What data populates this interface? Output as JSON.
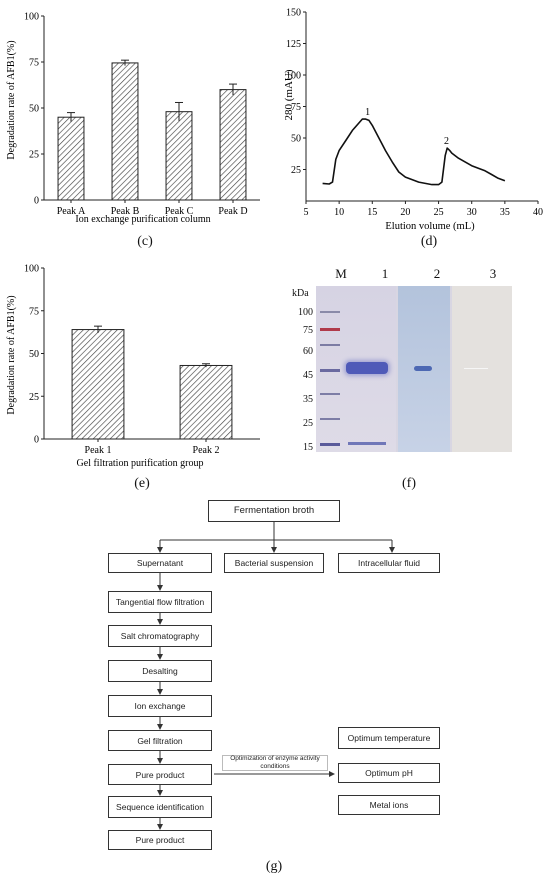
{
  "panels": {
    "c": {
      "label": "(c)",
      "chart_data": {
        "type": "bar",
        "categories": [
          "Peak A",
          "Peak B",
          "Peak C",
          "Peak D"
        ],
        "values": [
          45,
          74.5,
          48,
          60
        ],
        "errors": [
          2.5,
          1.5,
          5,
          3
        ],
        "xlabel": "Ion exchange purification column",
        "ylabel": "Degradation rate of AFB1(%)",
        "ylim": [
          0,
          100
        ],
        "yticks": [
          "0",
          "25",
          "50",
          "75",
          "100"
        ],
        "grid": false,
        "bar_pattern": "diagonal-hatch"
      }
    },
    "d": {
      "label": "(d)",
      "chart_data": {
        "type": "line",
        "x": [
          7.5,
          8.5,
          9.0,
          9.5,
          10.0,
          11.0,
          12.0,
          13.0,
          13.5,
          14.0,
          14.5,
          15.0,
          16.0,
          17.0,
          18.0,
          19.0,
          20.0,
          21.0,
          22.0,
          23.0,
          24.0,
          25.0,
          25.5,
          26.0,
          26.3,
          26.7,
          27.0,
          28.0,
          29.0,
          30.0,
          31.0,
          32.0,
          33.0,
          34.0,
          35.0
        ],
        "y": [
          14,
          13.5,
          15,
          33,
          40,
          48,
          56,
          62,
          65,
          65,
          64,
          60,
          50,
          40,
          31,
          23,
          19,
          17,
          15,
          14,
          13,
          13,
          15,
          36,
          42,
          40,
          38,
          34,
          31,
          28,
          26,
          24,
          21,
          18,
          16
        ],
        "xlabel": "Elution volume (mL)",
        "ylabel": "280 (mAU)",
        "xlim": [
          5,
          40
        ],
        "ylim": [
          0,
          150
        ],
        "xticks": [
          "5",
          "10",
          "15",
          "20",
          "25",
          "30",
          "35",
          "40"
        ],
        "yticks": [
          "25",
          "50",
          "75",
          "100",
          "125",
          "150"
        ],
        "annotations": [
          {
            "text": "1",
            "x": 14.3,
            "y": 66
          },
          {
            "text": "2",
            "x": 26.2,
            "y": 43
          }
        ]
      }
    },
    "e": {
      "label": "(e)",
      "chart_data": {
        "type": "bar",
        "categories": [
          "Peak 1",
          "Peak 2"
        ],
        "values": [
          64,
          43
        ],
        "errors": [
          2,
          1
        ],
        "xlabel": "Gel filtration purification group",
        "ylabel": "Degradation rate of AFB1(%)",
        "ylim": [
          0,
          100
        ],
        "yticks": [
          "0",
          "25",
          "50",
          "75",
          "100"
        ],
        "grid": false,
        "bar_pattern": "diagonal-hatch"
      }
    },
    "f": {
      "label": "(f)",
      "lanes": [
        "M",
        "1",
        "2",
        "3"
      ],
      "unit": "kDa",
      "markers": [
        "100",
        "75",
        "60",
        "45",
        "35",
        "25",
        "15"
      ]
    },
    "g": {
      "label": "(g)",
      "flowchart": {
        "top": "Fermentation broth",
        "branches": [
          "Supernatant",
          "Bacterial suspension",
          "Intracellular fluid"
        ],
        "steps": [
          "Tangential flow filtration",
          "Salt chromatography",
          "Desalting",
          "Ion exchange",
          "Gel filtration",
          "Pure product",
          "Sequence identification",
          "Pure product"
        ],
        "arrow_label": "Optimization of enzyme activity conditions",
        "conditions": [
          "Optimum temperature",
          "Optimum pH",
          "Metal ions"
        ]
      }
    }
  }
}
